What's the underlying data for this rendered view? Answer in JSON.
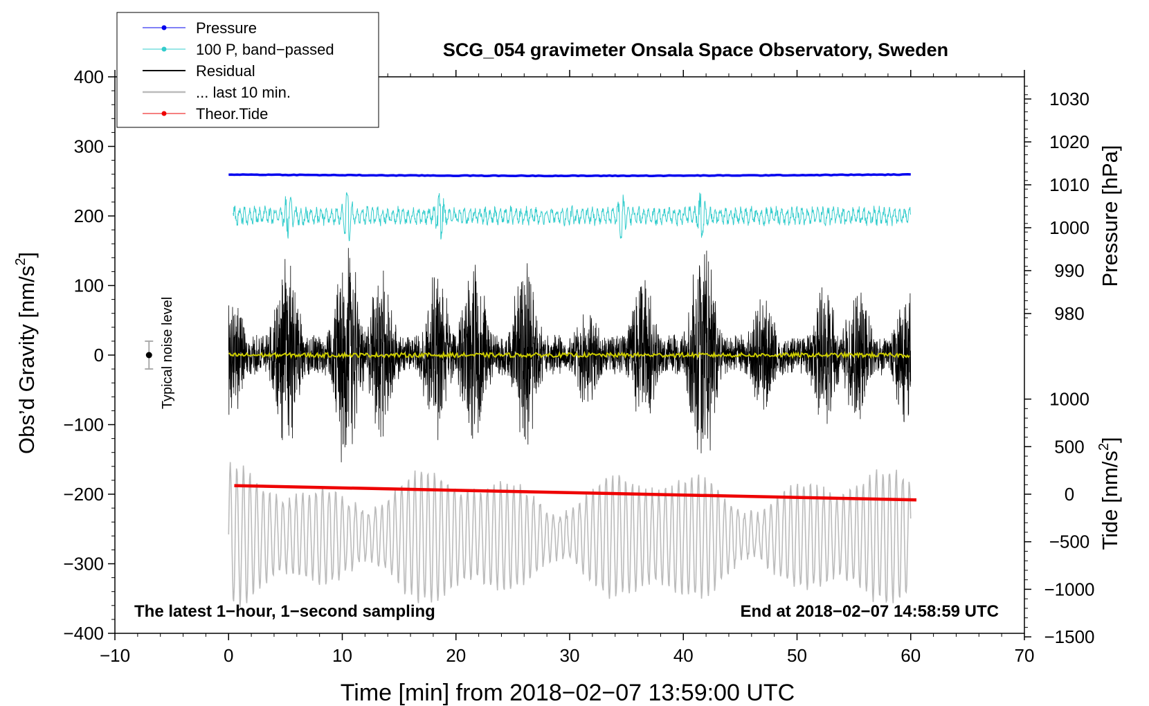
{
  "chart_data": {
    "type": "line",
    "title": "SCG_054 gravimeter Onsala Space Observatory, Sweden",
    "xlabel": "Time [min] from 2018−02−07 13:59:00 UTC",
    "ylabel_left_main": "Obs’d Gravity [nm/s",
    "ylabel_left_sup": "2",
    "ylabel_left_close": "]",
    "ylabel_right_top": "Pressure [hPa]",
    "ylabel_right_bottom_main": "Tide [nm/s",
    "ylabel_right_bottom_sup": "2",
    "ylabel_right_bottom_close": "]",
    "xlim": [
      -10,
      70
    ],
    "ylim": [
      -400,
      400
    ],
    "pressure_axis_range": [
      975,
      1033
    ],
    "tide_axis_range": [
      -1500,
      1000
    ],
    "x_ticks": [
      "−10",
      "0",
      "10",
      "20",
      "30",
      "40",
      "50",
      "60",
      "70"
    ],
    "x_tick_values": [
      -10,
      0,
      10,
      20,
      30,
      40,
      50,
      60,
      70
    ],
    "y_ticks": [
      "400",
      "300",
      "200",
      "100",
      "0",
      "−100",
      "−200",
      "−300",
      "−400"
    ],
    "y_tick_values": [
      400,
      300,
      200,
      100,
      0,
      -100,
      -200,
      -300,
      -400
    ],
    "pressure_ticks": [
      "1030",
      "1020",
      "1010",
      "1000",
      "990",
      "980"
    ],
    "pressure_tick_values": [
      1030,
      1020,
      1010,
      1000,
      990,
      980
    ],
    "tide_ticks": [
      "1000",
      "500",
      "0",
      "−500",
      "−1000",
      "−1500"
    ],
    "tide_tick_values": [
      1000,
      500,
      0,
      -500,
      -1000,
      -1500
    ],
    "legend": [
      {
        "label": "Pressure",
        "color": "#0000ee",
        "marker": true
      },
      {
        "label": "100 P, band−passed",
        "color": "#33cccc",
        "marker": true
      },
      {
        "label": "Residual",
        "color": "#000000",
        "marker": false
      },
      {
        "label": "... last 10 min.",
        "color": "#bbbbbb",
        "marker": false
      },
      {
        "label": "Theor.Tide",
        "color": "#ee0000",
        "marker": true
      }
    ],
    "annotation_left": "The latest 1−hour, 1−second sampling",
    "annotation_right": "End at 2018−02−07 14:58:59 UTC",
    "noise_label": "Typical noise level",
    "noise_level": {
      "x": -7,
      "center": 0,
      "half_range": 20
    },
    "series": [
      {
        "name": "Pressure",
        "axis": "pressure",
        "color": "#0000ee",
        "x_start": 0,
        "x_end": 60,
        "level_start": 1012.4,
        "level_mid": 1012.1,
        "level_end": 1012.4
      },
      {
        "name": "100 P, band-passed",
        "axis": "gravity",
        "color": "#33cccc",
        "x_start": 0.4,
        "x_end": 60,
        "center": 200,
        "amplitude": 10,
        "max_excursion": 30
      },
      {
        "name": "Residual",
        "axis": "gravity",
        "color": "#000000",
        "x_start": 0,
        "x_end": 60,
        "center": 0,
        "envelope_peaks": [
          {
            "t": 0.3,
            "amp": 95
          },
          {
            "t": 5.1,
            "amp": 150
          },
          {
            "t": 10.4,
            "amp": 185
          },
          {
            "t": 13.5,
            "amp": 130
          },
          {
            "t": 18.3,
            "amp": 135
          },
          {
            "t": 21.6,
            "amp": 150
          },
          {
            "t": 26.1,
            "amp": 150
          },
          {
            "t": 31.5,
            "amp": 80
          },
          {
            "t": 36.5,
            "amp": 120
          },
          {
            "t": 41.7,
            "amp": 190
          },
          {
            "t": 47.0,
            "amp": 95
          },
          {
            "t": 52.4,
            "amp": 105
          },
          {
            "t": 55.3,
            "amp": 110
          },
          {
            "t": 59.6,
            "amp": 100
          }
        ]
      },
      {
        "name": "Residual (smoothed)",
        "axis": "gravity",
        "color": "#cccc00",
        "x_start": 0,
        "x_end": 60,
        "center": 0
      },
      {
        "name": "... last 10 min.",
        "axis": "gravity",
        "color": "#bbbbbb",
        "x_start": 0,
        "x_end": 60,
        "center": -260,
        "amplitude_range": [
          30,
          100
        ]
      },
      {
        "name": "Theor.Tide",
        "axis": "tide",
        "color": "#ee0000",
        "x": [
          0.5,
          60.5
        ],
        "values": [
          90,
          -60
        ]
      }
    ]
  }
}
